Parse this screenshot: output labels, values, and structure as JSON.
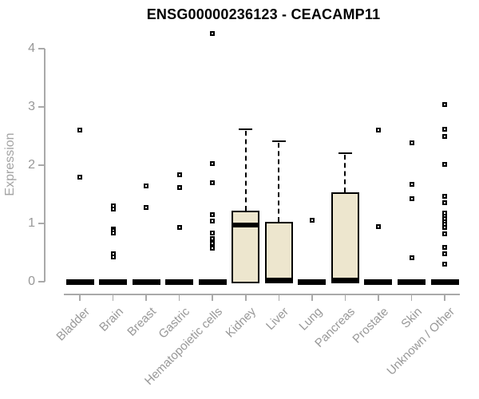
{
  "chart_data": {
    "type": "box",
    "title": "ENSG00000236123 - CEACAMP11",
    "xlabel": "",
    "ylabel": "Expression",
    "ylim": [
      0,
      4.3
    ],
    "yticks": [
      0,
      1,
      2,
      3,
      4
    ],
    "grid": false,
    "legend": false,
    "categories": [
      "Bladder",
      "Brain",
      "Breast",
      "Gastric",
      "Hematopoietic cells",
      "Kidney",
      "Liver",
      "Lung",
      "Pancreas",
      "Prostate",
      "Skin",
      "Unknown / Other"
    ],
    "series": [
      {
        "category": "Bladder",
        "q1": 0,
        "median": 0,
        "q3": 0,
        "whisker_low": 0,
        "whisker_high": 0,
        "outliers": [
          2.6,
          1.8
        ]
      },
      {
        "category": "Brain",
        "q1": 0,
        "median": 0,
        "q3": 0,
        "whisker_low": 0,
        "whisker_high": 0,
        "outliers": [
          1.3,
          1.24,
          0.91,
          0.87,
          0.83,
          0.48,
          0.42
        ]
      },
      {
        "category": "Breast",
        "q1": 0,
        "median": 0,
        "q3": 0,
        "whisker_low": 0,
        "whisker_high": 0,
        "outliers": [
          1.64,
          1.27
        ]
      },
      {
        "category": "Gastric",
        "q1": 0,
        "median": 0,
        "q3": 0,
        "whisker_low": 0,
        "whisker_high": 0,
        "outliers": [
          1.84,
          1.62,
          0.93
        ]
      },
      {
        "category": "Hematopoietic cells",
        "q1": 0,
        "median": 0,
        "q3": 0,
        "whisker_low": 0,
        "whisker_high": 0,
        "outliers": [
          4.26,
          2.03,
          1.7,
          1.15,
          1.04,
          0.84,
          0.74,
          0.66,
          0.58
        ]
      },
      {
        "category": "Kidney",
        "q1": 0,
        "median": 0.97,
        "q3": 1.22,
        "whisker_low": 0,
        "whisker_high": 2.62,
        "outliers": []
      },
      {
        "category": "Liver",
        "q1": 0,
        "median": 0.02,
        "q3": 1.03,
        "whisker_low": 0,
        "whisker_high": 2.41,
        "outliers": []
      },
      {
        "category": "Lung",
        "q1": 0,
        "median": 0,
        "q3": 0,
        "whisker_low": 0,
        "whisker_high": 0,
        "outliers": [
          1.05
        ]
      },
      {
        "category": "Pancreas",
        "q1": 0,
        "median": 0.02,
        "q3": 1.54,
        "whisker_low": 0,
        "whisker_high": 2.2,
        "outliers": []
      },
      {
        "category": "Prostate",
        "q1": 0,
        "median": 0,
        "q3": 0,
        "whisker_low": 0,
        "whisker_high": 0,
        "outliers": [
          2.6,
          0.95
        ]
      },
      {
        "category": "Skin",
        "q1": 0,
        "median": 0,
        "q3": 0,
        "whisker_low": 0,
        "whisker_high": 0,
        "outliers": [
          2.38,
          1.67,
          1.42,
          0.41
        ]
      },
      {
        "category": "Unknown / Other",
        "q1": 0,
        "median": 0,
        "q3": 0,
        "whisker_low": 0,
        "whisker_high": 0,
        "outliers": [
          3.04,
          2.62,
          2.49,
          2.01,
          1.47,
          1.36,
          1.18,
          1.13,
          1.08,
          1.03,
          0.98,
          0.93,
          0.82,
          0.59,
          0.48,
          0.3
        ]
      }
    ],
    "colors": {
      "box_fill": "#ede6ce",
      "box_border": "#000000",
      "median": "#000000",
      "whisker": "#000000",
      "zero_bar": "#000000",
      "axis": "#a9a9a9",
      "tick_label": "#989898",
      "title": "#000000",
      "outlier_border": "#000000",
      "outlier_fill": "#ffffff"
    }
  }
}
